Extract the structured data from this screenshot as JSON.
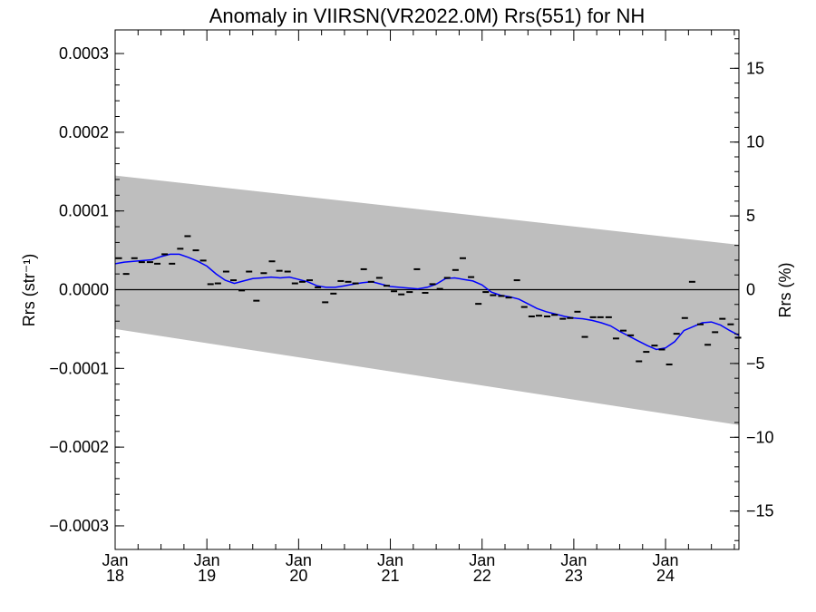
{
  "chart_data": {
    "type": "scatter",
    "title": "Anomaly in VIIRSN(VR2022.0M) Rrs(551) for NH",
    "ylabel_left": "Rrs (str⁻¹)",
    "ylabel_right": "Rrs (%)",
    "xlabel": "",
    "xlim": [
      2018.0,
      2024.8
    ],
    "ylim_left": [
      -0.00033,
      0.00033
    ],
    "ylim_right": [
      -17.6,
      17.6
    ],
    "grid": false,
    "x_ticks": [
      {
        "value": 2018,
        "month": "Jan",
        "year": "18"
      },
      {
        "value": 2019,
        "month": "Jan",
        "year": "19"
      },
      {
        "value": 2020,
        "month": "Jan",
        "year": "20"
      },
      {
        "value": 2021,
        "month": "Jan",
        "year": "21"
      },
      {
        "value": 2022,
        "month": "Jan",
        "year": "22"
      },
      {
        "value": 2023,
        "month": "Jan",
        "year": "23"
      },
      {
        "value": 2024,
        "month": "Jan",
        "year": "24"
      }
    ],
    "y_ticks_left": [
      {
        "value": 0.0003,
        "label": "0.0003"
      },
      {
        "value": 0.0002,
        "label": "0.0002"
      },
      {
        "value": 0.0001,
        "label": "0.0001"
      },
      {
        "value": 0.0,
        "label": "0.0000"
      },
      {
        "value": -0.0001,
        "label": "−0.0001"
      },
      {
        "value": -0.0002,
        "label": "−0.0002"
      },
      {
        "value": -0.0003,
        "label": "−0.0003"
      }
    ],
    "y_ticks_right": [
      {
        "value": 15,
        "label": "15"
      },
      {
        "value": 10,
        "label": "10"
      },
      {
        "value": 5,
        "label": "5"
      },
      {
        "value": 0,
        "label": "0"
      },
      {
        "value": -5,
        "label": "−5"
      },
      {
        "value": -10,
        "label": "−10"
      },
      {
        "value": -15,
        "label": "−15"
      }
    ],
    "band": {
      "color": "#bebebe",
      "upper": [
        [
          2018.0,
          0.000145
        ],
        [
          2024.8,
          5.7e-05
        ]
      ],
      "lower": [
        [
          2018.0,
          -5e-05
        ],
        [
          2024.8,
          -0.000172
        ]
      ]
    },
    "zero_line_color": "#000000",
    "monthly_points": {
      "color": "#000000",
      "points": [
        [
          2018.04,
          4e-05
        ],
        [
          2018.12,
          2e-05
        ],
        [
          2018.21,
          4e-05
        ],
        [
          2018.29,
          3.5e-05
        ],
        [
          2018.38,
          3.5e-05
        ],
        [
          2018.46,
          3.3e-05
        ],
        [
          2018.54,
          4.5e-05
        ],
        [
          2018.62,
          3.3e-05
        ],
        [
          2018.71,
          5.2e-05
        ],
        [
          2018.79,
          6.8e-05
        ],
        [
          2018.88,
          5e-05
        ],
        [
          2018.96,
          3.7e-05
        ],
        [
          2019.04,
          7e-06
        ],
        [
          2019.12,
          8e-06
        ],
        [
          2019.21,
          2.3e-05
        ],
        [
          2019.29,
          1.2e-05
        ],
        [
          2019.38,
          -1e-06
        ],
        [
          2019.46,
          2.3e-05
        ],
        [
          2019.54,
          -1.4e-05
        ],
        [
          2019.62,
          2.1e-05
        ],
        [
          2019.71,
          3.6e-05
        ],
        [
          2019.79,
          2.4e-05
        ],
        [
          2019.88,
          2.3e-05
        ],
        [
          2019.96,
          8e-06
        ],
        [
          2020.04,
          1e-05
        ],
        [
          2020.12,
          1.2e-05
        ],
        [
          2020.21,
          3e-06
        ],
        [
          2020.29,
          -1.6e-05
        ],
        [
          2020.38,
          -5e-06
        ],
        [
          2020.46,
          1.1e-05
        ],
        [
          2020.54,
          1e-05
        ],
        [
          2020.62,
          8e-06
        ],
        [
          2020.71,
          2.6e-05
        ],
        [
          2020.79,
          1e-05
        ],
        [
          2020.88,
          1.5e-05
        ],
        [
          2020.96,
          5e-06
        ],
        [
          2021.04,
          -2e-06
        ],
        [
          2021.12,
          -6e-06
        ],
        [
          2021.21,
          -3e-06
        ],
        [
          2021.29,
          2.6e-05
        ],
        [
          2021.38,
          -4e-06
        ],
        [
          2021.46,
          7e-06
        ],
        [
          2021.54,
          1e-06
        ],
        [
          2021.62,
          1.5e-05
        ],
        [
          2021.71,
          2.5e-05
        ],
        [
          2021.79,
          4e-05
        ],
        [
          2021.88,
          1.6e-05
        ],
        [
          2021.96,
          -1.8e-05
        ],
        [
          2022.04,
          -3e-06
        ],
        [
          2022.12,
          -7e-06
        ],
        [
          2022.21,
          -8e-06
        ],
        [
          2022.29,
          -1e-05
        ],
        [
          2022.38,
          1.2e-05
        ],
        [
          2022.46,
          -2.2e-05
        ],
        [
          2022.54,
          -3.4e-05
        ],
        [
          2022.62,
          -3.3e-05
        ],
        [
          2022.71,
          -3.4e-05
        ],
        [
          2022.79,
          -3.2e-05
        ],
        [
          2022.88,
          -3.7e-05
        ],
        [
          2022.96,
          -3.6e-05
        ],
        [
          2023.04,
          -2.8e-05
        ],
        [
          2023.12,
          -6e-05
        ],
        [
          2023.21,
          -3.5e-05
        ],
        [
          2023.29,
          -3.5e-05
        ],
        [
          2023.38,
          -3.5e-05
        ],
        [
          2023.46,
          -6.2e-05
        ],
        [
          2023.54,
          -5.2e-05
        ],
        [
          2023.62,
          -5.8e-05
        ],
        [
          2023.71,
          -9.1e-05
        ],
        [
          2023.79,
          -7.9e-05
        ],
        [
          2023.88,
          -7.1e-05
        ],
        [
          2023.96,
          -7.6e-05
        ],
        [
          2024.04,
          -9.5e-05
        ],
        [
          2024.12,
          -5.6e-05
        ],
        [
          2024.21,
          -3.6e-05
        ],
        [
          2024.29,
          1e-05
        ],
        [
          2024.38,
          -4.4e-05
        ],
        [
          2024.46,
          -7e-05
        ],
        [
          2024.54,
          -5.4e-05
        ],
        [
          2024.62,
          -3.7e-05
        ],
        [
          2024.71,
          -4.4e-05
        ],
        [
          2024.79,
          -6.1e-05
        ]
      ]
    },
    "smoothed_series": {
      "color": "#0000ff",
      "points": [
        [
          2018.0,
          3.3e-05
        ],
        [
          2018.1,
          3.5e-05
        ],
        [
          2018.2,
          3.6e-05
        ],
        [
          2018.3,
          3.7e-05
        ],
        [
          2018.4,
          3.8e-05
        ],
        [
          2018.5,
          4.2e-05
        ],
        [
          2018.6,
          4.5e-05
        ],
        [
          2018.7,
          4.5e-05
        ],
        [
          2018.8,
          4.1e-05
        ],
        [
          2018.9,
          3.6e-05
        ],
        [
          2019.0,
          3e-05
        ],
        [
          2019.1,
          2e-05
        ],
        [
          2019.2,
          1.2e-05
        ],
        [
          2019.3,
          8e-06
        ],
        [
          2019.4,
          1.1e-05
        ],
        [
          2019.5,
          1.4e-05
        ],
        [
          2019.6,
          1.5e-05
        ],
        [
          2019.7,
          1.6e-05
        ],
        [
          2019.8,
          1.5e-05
        ],
        [
          2019.9,
          1.6e-05
        ],
        [
          2020.0,
          1.3e-05
        ],
        [
          2020.1,
          1e-05
        ],
        [
          2020.2,
          5e-06
        ],
        [
          2020.3,
          3e-06
        ],
        [
          2020.4,
          3e-06
        ],
        [
          2020.5,
          5e-06
        ],
        [
          2020.6,
          7e-06
        ],
        [
          2020.7,
          9e-06
        ],
        [
          2020.8,
          1e-05
        ],
        [
          2020.9,
          7e-06
        ],
        [
          2021.0,
          4e-06
        ],
        [
          2021.1,
          3e-06
        ],
        [
          2021.2,
          2e-06
        ],
        [
          2021.3,
          1e-06
        ],
        [
          2021.4,
          3e-06
        ],
        [
          2021.5,
          7e-06
        ],
        [
          2021.6,
          1.4e-05
        ],
        [
          2021.7,
          1.5e-05
        ],
        [
          2021.8,
          1.3e-05
        ],
        [
          2021.9,
          1.1e-05
        ],
        [
          2022.0,
          6e-06
        ],
        [
          2022.1,
          -3e-06
        ],
        [
          2022.2,
          -7e-06
        ],
        [
          2022.3,
          -9e-06
        ],
        [
          2022.4,
          -1.2e-05
        ],
        [
          2022.5,
          -1.8e-05
        ],
        [
          2022.6,
          -2.4e-05
        ],
        [
          2022.7,
          -2.8e-05
        ],
        [
          2022.8,
          -3.1e-05
        ],
        [
          2022.9,
          -3.4e-05
        ],
        [
          2023.0,
          -3.6e-05
        ],
        [
          2023.1,
          -3.7e-05
        ],
        [
          2023.2,
          -3.9e-05
        ],
        [
          2023.3,
          -4.2e-05
        ],
        [
          2023.4,
          -4.6e-05
        ],
        [
          2023.5,
          -5.3e-05
        ],
        [
          2023.6,
          -5.9e-05
        ],
        [
          2023.7,
          -6.5e-05
        ],
        [
          2023.8,
          -7.1e-05
        ],
        [
          2023.9,
          -7.6e-05
        ],
        [
          2024.0,
          -7.4e-05
        ],
        [
          2024.1,
          -6.6e-05
        ],
        [
          2024.2,
          -5.2e-05
        ],
        [
          2024.3,
          -4.7e-05
        ],
        [
          2024.4,
          -4.2e-05
        ],
        [
          2024.5,
          -4.1e-05
        ],
        [
          2024.6,
          -4.5e-05
        ],
        [
          2024.7,
          -5.2e-05
        ],
        [
          2024.8,
          -5.8e-05
        ]
      ]
    }
  }
}
